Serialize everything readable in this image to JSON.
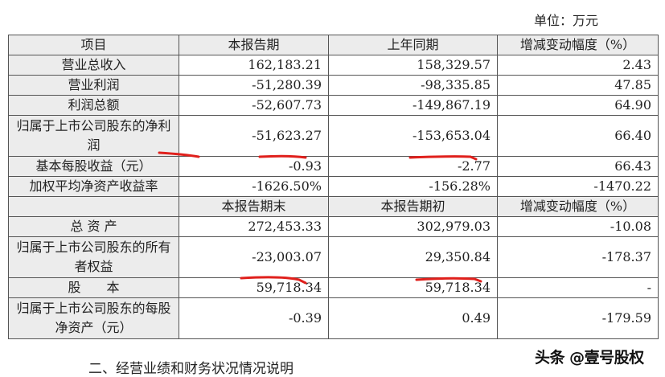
{
  "unit_label": "单位：万元",
  "table1": {
    "headers": [
      "项目",
      "本报告期",
      "上年同期",
      "增减变动幅度（%）"
    ],
    "rows": [
      [
        "营业总收入",
        "162,183.21",
        "158,329.57",
        "2.43"
      ],
      [
        "营业利润",
        "-51,280.39",
        "-98,335.85",
        "47.85"
      ],
      [
        "利润总额",
        "-52,607.73",
        "-149,867.19",
        "64.90"
      ],
      [
        "归属于上市公司股东的净利润",
        "-51,623.27",
        "-153,653.04",
        "66.40"
      ],
      [
        "基本每股收益（元）",
        "-0.93",
        "-2.77",
        "66.43"
      ],
      [
        "加权平均净资产收益率",
        "-1626.50%",
        "-156.28%",
        "-1470.22"
      ]
    ]
  },
  "table2": {
    "headers": [
      "",
      "本报告期末",
      "本报告期初",
      "增减变动幅度（%）"
    ],
    "rows": [
      [
        "总 资 产",
        "272,453.33",
        "302,979.03",
        "-10.08"
      ],
      [
        "归属于上市公司股东的所有者权益",
        "-23,003.07",
        "29,350.84",
        "-178.37"
      ],
      [
        "股　　本",
        "59,718.34",
        "59,718.34",
        "-"
      ],
      [
        "归属于上市公司股东的每股净资产（元）",
        "-0.39",
        "0.49",
        "-179.59"
      ]
    ]
  },
  "footer_heading": "二、经营业绩和财务状况情况说明",
  "watermark": "头条 @壹号股权",
  "annotation_color": "#e0201c"
}
